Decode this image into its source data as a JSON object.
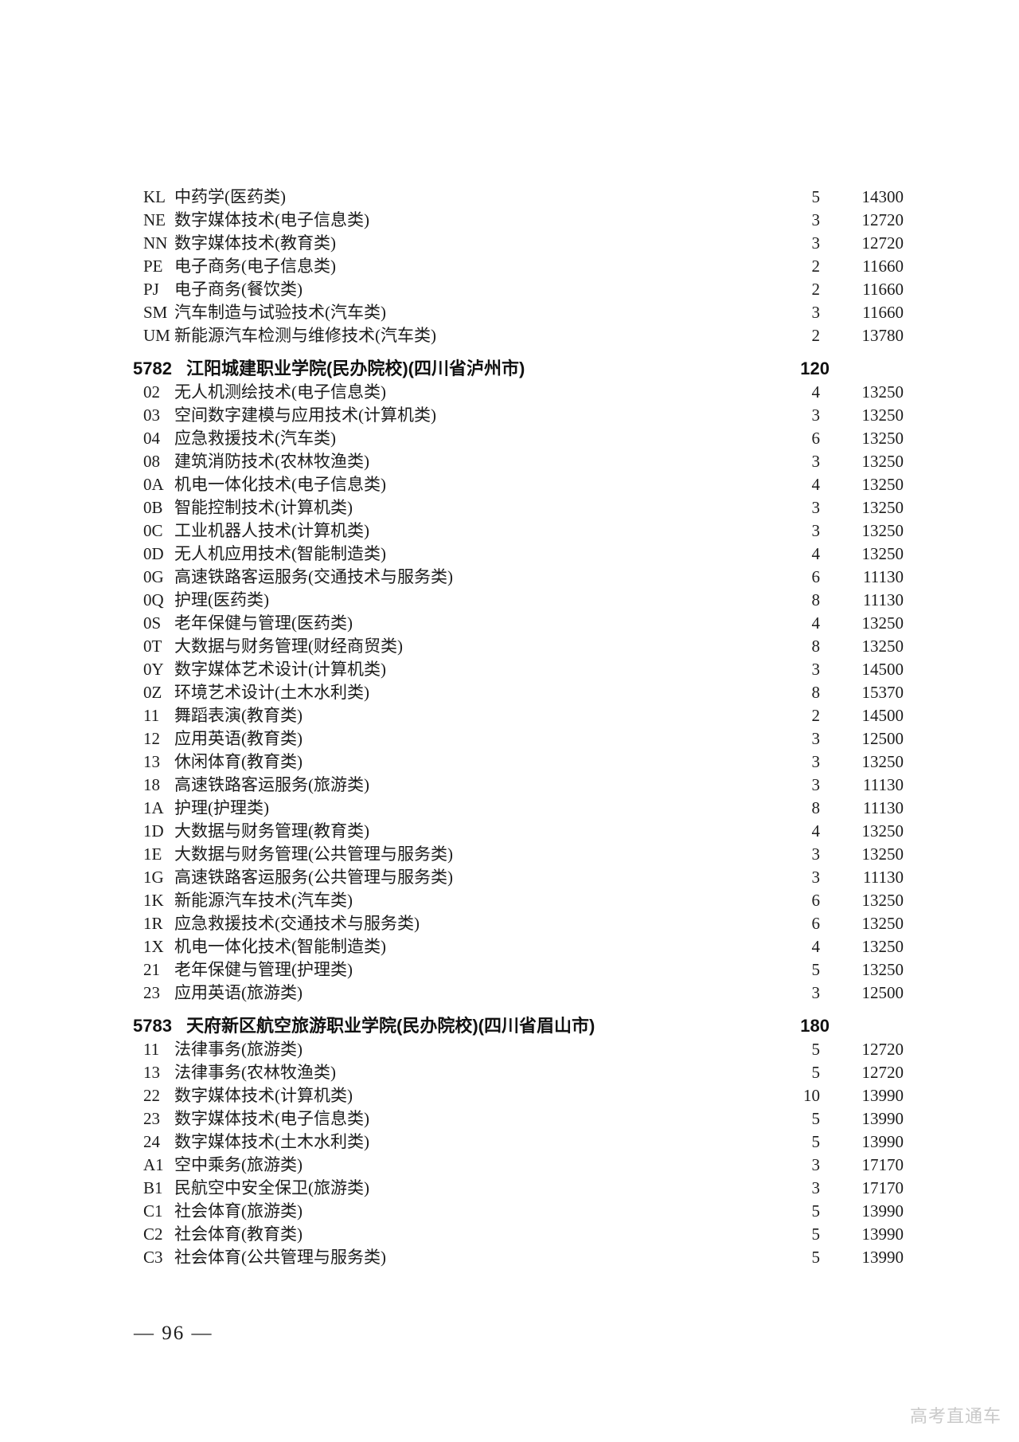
{
  "page": {
    "background": "#ffffff",
    "text_color": "#1c1c1c",
    "footer_page_number": "— 96 —",
    "watermark": "高考直通车",
    "watermark_color": "#c9c9c9"
  },
  "table": {
    "sections": [
      {
        "header": null,
        "rows": [
          {
            "code": "KL",
            "name": "中药学(医药类)",
            "quota": "5",
            "fee": "14300"
          },
          {
            "code": "NE",
            "name": "数字媒体技术(电子信息类)",
            "quota": "3",
            "fee": "12720"
          },
          {
            "code": "NN",
            "name": "数字媒体技术(教育类)",
            "quota": "3",
            "fee": "12720"
          },
          {
            "code": "PE",
            "name": "电子商务(电子信息类)",
            "quota": "2",
            "fee": "11660"
          },
          {
            "code": "PJ",
            "name": "电子商务(餐饮类)",
            "quota": "2",
            "fee": "11660"
          },
          {
            "code": "SM",
            "name": "汽车制造与试验技术(汽车类)",
            "quota": "3",
            "fee": "11660"
          },
          {
            "code": "UM",
            "name": "新能源汽车检测与维修技术(汽车类)",
            "quota": "2",
            "fee": "13780"
          }
        ]
      },
      {
        "header": {
          "code": "5782",
          "name": "江阳城建职业学院(民办院校)(四川省泸州市)",
          "total": "120"
        },
        "rows": [
          {
            "code": "02",
            "name": "无人机测绘技术(电子信息类)",
            "quota": "4",
            "fee": "13250"
          },
          {
            "code": "03",
            "name": "空间数字建模与应用技术(计算机类)",
            "quota": "3",
            "fee": "13250"
          },
          {
            "code": "04",
            "name": "应急救援技术(汽车类)",
            "quota": "6",
            "fee": "13250"
          },
          {
            "code": "08",
            "name": "建筑消防技术(农林牧渔类)",
            "quota": "3",
            "fee": "13250"
          },
          {
            "code": "0A",
            "name": "机电一体化技术(电子信息类)",
            "quota": "4",
            "fee": "13250"
          },
          {
            "code": "0B",
            "name": "智能控制技术(计算机类)",
            "quota": "3",
            "fee": "13250"
          },
          {
            "code": "0C",
            "name": "工业机器人技术(计算机类)",
            "quota": "3",
            "fee": "13250"
          },
          {
            "code": "0D",
            "name": "无人机应用技术(智能制造类)",
            "quota": "4",
            "fee": "13250"
          },
          {
            "code": "0G",
            "name": "高速铁路客运服务(交通技术与服务类)",
            "quota": "6",
            "fee": "11130"
          },
          {
            "code": "0Q",
            "name": "护理(医药类)",
            "quota": "8",
            "fee": "11130"
          },
          {
            "code": "0S",
            "name": "老年保健与管理(医药类)",
            "quota": "4",
            "fee": "13250"
          },
          {
            "code": "0T",
            "name": "大数据与财务管理(财经商贸类)",
            "quota": "8",
            "fee": "13250"
          },
          {
            "code": "0Y",
            "name": "数字媒体艺术设计(计算机类)",
            "quota": "3",
            "fee": "14500"
          },
          {
            "code": "0Z",
            "name": "环境艺术设计(土木水利类)",
            "quota": "8",
            "fee": "15370"
          },
          {
            "code": "11",
            "name": "舞蹈表演(教育类)",
            "quota": "2",
            "fee": "14500"
          },
          {
            "code": "12",
            "name": "应用英语(教育类)",
            "quota": "3",
            "fee": "12500"
          },
          {
            "code": "13",
            "name": "休闲体育(教育类)",
            "quota": "3",
            "fee": "13250"
          },
          {
            "code": "18",
            "name": "高速铁路客运服务(旅游类)",
            "quota": "3",
            "fee": "11130"
          },
          {
            "code": "1A",
            "name": "护理(护理类)",
            "quota": "8",
            "fee": "11130"
          },
          {
            "code": "1D",
            "name": "大数据与财务管理(教育类)",
            "quota": "4",
            "fee": "13250"
          },
          {
            "code": "1E",
            "name": "大数据与财务管理(公共管理与服务类)",
            "quota": "3",
            "fee": "13250"
          },
          {
            "code": "1G",
            "name": "高速铁路客运服务(公共管理与服务类)",
            "quota": "3",
            "fee": "11130"
          },
          {
            "code": "1K",
            "name": "新能源汽车技术(汽车类)",
            "quota": "6",
            "fee": "13250"
          },
          {
            "code": "1R",
            "name": "应急救援技术(交通技术与服务类)",
            "quota": "6",
            "fee": "13250"
          },
          {
            "code": "1X",
            "name": "机电一体化技术(智能制造类)",
            "quota": "4",
            "fee": "13250"
          },
          {
            "code": "21",
            "name": "老年保健与管理(护理类)",
            "quota": "5",
            "fee": "13250"
          },
          {
            "code": "23",
            "name": "应用英语(旅游类)",
            "quota": "3",
            "fee": "12500"
          }
        ]
      },
      {
        "header": {
          "code": "5783",
          "name": "天府新区航空旅游职业学院(民办院校)(四川省眉山市)",
          "total": "180"
        },
        "rows": [
          {
            "code": "11",
            "name": "法律事务(旅游类)",
            "quota": "5",
            "fee": "12720"
          },
          {
            "code": "13",
            "name": "法律事务(农林牧渔类)",
            "quota": "5",
            "fee": "12720"
          },
          {
            "code": "22",
            "name": "数字媒体技术(计算机类)",
            "quota": "10",
            "fee": "13990"
          },
          {
            "code": "23",
            "name": "数字媒体技术(电子信息类)",
            "quota": "5",
            "fee": "13990"
          },
          {
            "code": "24",
            "name": "数字媒体技术(土木水利类)",
            "quota": "5",
            "fee": "13990"
          },
          {
            "code": "A1",
            "name": "空中乘务(旅游类)",
            "quota": "3",
            "fee": "17170"
          },
          {
            "code": "B1",
            "name": "民航空中安全保卫(旅游类)",
            "quota": "3",
            "fee": "17170"
          },
          {
            "code": "C1",
            "name": "社会体育(旅游类)",
            "quota": "5",
            "fee": "13990"
          },
          {
            "code": "C2",
            "name": "社会体育(教育类)",
            "quota": "5",
            "fee": "13990"
          },
          {
            "code": "C3",
            "name": "社会体育(公共管理与服务类)",
            "quota": "5",
            "fee": "13990"
          }
        ]
      }
    ]
  }
}
